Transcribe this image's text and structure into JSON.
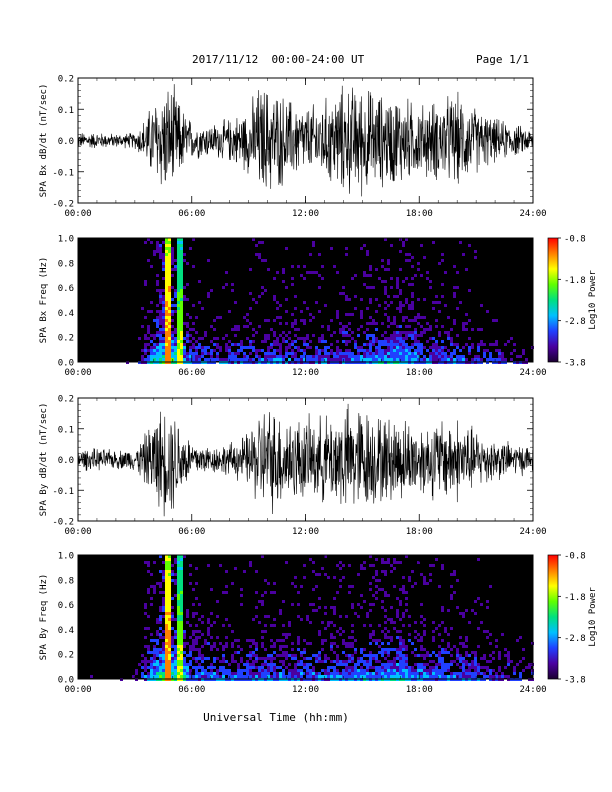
{
  "header": {
    "date_range": "2017/11/12  00:00-24:00 UT",
    "page": "Page 1/1"
  },
  "footer": {
    "xlabel": "Universal Time (hh:mm)"
  },
  "colors": {
    "trace": "#000000",
    "spectrogram_background": "#000000",
    "colorbar": [
      "#1a0030",
      "#4a00a0",
      "#2040ff",
      "#00c0ff",
      "#00e080",
      "#60ff00",
      "#ffff00",
      "#ff8000",
      "#ff0000"
    ]
  },
  "chart_data": [
    {
      "type": "line",
      "id": "bx-ts",
      "ylabel": "SPA Bx dB/dt (nT/sec)",
      "x_ticks": [
        "00:00",
        "06:00",
        "12:00",
        "18:00",
        "24:00"
      ],
      "xlim": [
        0,
        24
      ],
      "ylim": [
        -0.2,
        0.2
      ],
      "y_ticks": [
        "-0.2",
        "-0.1",
        "0.0",
        "0.1",
        "0.2"
      ],
      "y_tick_values": [
        -0.2,
        -0.1,
        0.0,
        0.1,
        0.2
      ],
      "envelope": {
        "hours": [
          0,
          1,
          2,
          3,
          3.5,
          4,
          4.5,
          5,
          5.5,
          6,
          7,
          8,
          9,
          9.5,
          10,
          11,
          12,
          13,
          14,
          15,
          16,
          17,
          18,
          19,
          20,
          21,
          22,
          23,
          24
        ],
        "amplitude": [
          0.03,
          0.03,
          0.025,
          0.03,
          0.08,
          0.15,
          0.2,
          0.2,
          0.12,
          0.07,
          0.06,
          0.08,
          0.12,
          0.2,
          0.2,
          0.16,
          0.12,
          0.15,
          0.2,
          0.2,
          0.17,
          0.17,
          0.13,
          0.15,
          0.17,
          0.12,
          0.08,
          0.06,
          0.04
        ]
      }
    },
    {
      "type": "heatmap",
      "id": "bx-spec",
      "ylabel": "SPA Bx Freq (Hz)",
      "x_ticks": [
        "00:00",
        "06:00",
        "12:00",
        "18:00",
        "24:00"
      ],
      "xlim": [
        0,
        24
      ],
      "ylim": [
        0,
        1.0
      ],
      "y_ticks": [
        "0.0",
        "0.2",
        "0.4",
        "0.6",
        "0.8",
        "1.0"
      ],
      "y_tick_values": [
        0.0,
        0.2,
        0.4,
        0.6,
        0.8,
        1.0
      ],
      "colorbar": {
        "label": "Log10 Power",
        "ticks": [
          "-0.8",
          "-1.8",
          "-2.8",
          "-3.8"
        ],
        "range": [
          -3.8,
          -0.8
        ]
      },
      "activity": {
        "hours": [
          0,
          2,
          3,
          3.5,
          4,
          4.5,
          5,
          6,
          7,
          8,
          10,
          12,
          14,
          15,
          16,
          17,
          18,
          20,
          22,
          24
        ],
        "level": [
          0.1,
          0.1,
          0.15,
          0.5,
          0.7,
          1.0,
          0.9,
          0.45,
          0.4,
          0.4,
          0.45,
          0.45,
          0.5,
          0.55,
          0.6,
          0.7,
          0.5,
          0.45,
          0.3,
          0.2
        ]
      }
    },
    {
      "type": "line",
      "id": "by-ts",
      "ylabel": "SPA By dB/dt (nT/sec)",
      "x_ticks": [
        "00:00",
        "06:00",
        "12:00",
        "18:00",
        "24:00"
      ],
      "xlim": [
        0,
        24
      ],
      "ylim": [
        -0.2,
        0.2
      ],
      "y_ticks": [
        "-0.2",
        "-0.1",
        "0.0",
        "0.1",
        "0.2"
      ],
      "y_tick_values": [
        -0.2,
        -0.1,
        0.0,
        0.1,
        0.2
      ],
      "envelope": {
        "hours": [
          0,
          1,
          2,
          3,
          3.5,
          4,
          4.5,
          5,
          5.5,
          6,
          7,
          8,
          9,
          9.5,
          10,
          11,
          12,
          13,
          14,
          15,
          16,
          17,
          18,
          19,
          20,
          21,
          22,
          23,
          24
        ],
        "amplitude": [
          0.04,
          0.04,
          0.035,
          0.04,
          0.09,
          0.16,
          0.2,
          0.2,
          0.13,
          0.07,
          0.05,
          0.06,
          0.1,
          0.18,
          0.2,
          0.17,
          0.15,
          0.16,
          0.2,
          0.2,
          0.16,
          0.16,
          0.13,
          0.15,
          0.16,
          0.11,
          0.08,
          0.06,
          0.05
        ]
      }
    },
    {
      "type": "heatmap",
      "id": "by-spec",
      "ylabel": "SPA By Freq (Hz)",
      "x_ticks": [
        "00:00",
        "06:00",
        "12:00",
        "18:00",
        "24:00"
      ],
      "xlim": [
        0,
        24
      ],
      "ylim": [
        0,
        1.0
      ],
      "y_ticks": [
        "0.0",
        "0.2",
        "0.4",
        "0.6",
        "0.8",
        "1.0"
      ],
      "y_tick_values": [
        0.0,
        0.2,
        0.4,
        0.6,
        0.8,
        1.0
      ],
      "colorbar": {
        "label": "Log10 Power",
        "ticks": [
          "-0.8",
          "-1.8",
          "-2.8",
          "-3.8"
        ],
        "range": [
          -3.8,
          -0.8
        ]
      },
      "activity": {
        "hours": [
          0,
          2,
          3,
          3.5,
          4,
          4.5,
          5,
          6,
          7,
          8,
          10,
          12,
          14,
          15,
          16,
          17,
          18,
          20,
          22,
          24
        ],
        "level": [
          0.1,
          0.1,
          0.15,
          0.5,
          0.75,
          1.0,
          0.9,
          0.5,
          0.55,
          0.45,
          0.5,
          0.5,
          0.55,
          0.6,
          0.6,
          0.7,
          0.55,
          0.5,
          0.35,
          0.25
        ]
      }
    }
  ]
}
